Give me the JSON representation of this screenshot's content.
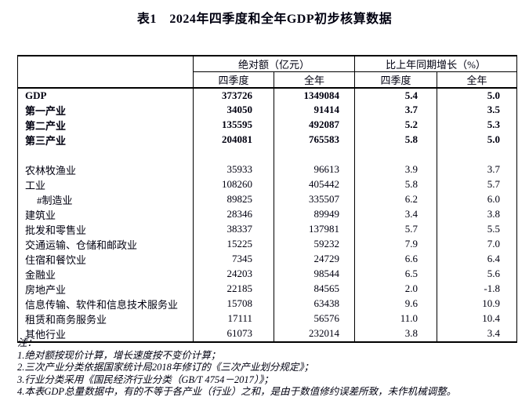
{
  "title": "表1　2024年四季度和全年GDP初步核算数据",
  "table": {
    "group_headers": [
      "绝对额（亿元）",
      "比上年同期增长（%）"
    ],
    "sub_headers": [
      "四季度",
      "全年",
      "四季度",
      "全年"
    ],
    "rows": [
      {
        "label": "GDP",
        "bold": true,
        "abs_q4": "373726",
        "abs_year": "1349084",
        "growth_q4": "5.4",
        "growth_year": "5.0"
      },
      {
        "label": "第一产业",
        "bold": true,
        "abs_q4": "34050",
        "abs_year": "91414",
        "growth_q4": "3.7",
        "growth_year": "3.5"
      },
      {
        "label": "第二产业",
        "bold": true,
        "abs_q4": "135595",
        "abs_year": "492087",
        "growth_q4": "5.2",
        "growth_year": "5.3"
      },
      {
        "label": "第三产业",
        "bold": true,
        "abs_q4": "204081",
        "abs_year": "765583",
        "growth_q4": "5.8",
        "growth_year": "5.0"
      },
      {
        "blank": true
      },
      {
        "label": "农林牧渔业",
        "abs_q4": "35933",
        "abs_year": "96613",
        "growth_q4": "3.9",
        "growth_year": "3.7"
      },
      {
        "label": "工业",
        "abs_q4": "108260",
        "abs_year": "405442",
        "growth_q4": "5.8",
        "growth_year": "5.7"
      },
      {
        "label": "#制造业",
        "indent": true,
        "abs_q4": "89825",
        "abs_year": "335507",
        "growth_q4": "6.2",
        "growth_year": "6.0"
      },
      {
        "label": "建筑业",
        "abs_q4": "28346",
        "abs_year": "89949",
        "growth_q4": "3.4",
        "growth_year": "3.8"
      },
      {
        "label": "批发和零售业",
        "abs_q4": "38337",
        "abs_year": "137981",
        "growth_q4": "5.7",
        "growth_year": "5.5"
      },
      {
        "label": "交通运输、仓储和邮政业",
        "abs_q4": "15225",
        "abs_year": "59232",
        "growth_q4": "7.9",
        "growth_year": "7.0"
      },
      {
        "label": "住宿和餐饮业",
        "abs_q4": "7345",
        "abs_year": "24729",
        "growth_q4": "6.6",
        "growth_year": "6.4"
      },
      {
        "label": "金融业",
        "abs_q4": "24203",
        "abs_year": "98544",
        "growth_q4": "6.5",
        "growth_year": "5.6"
      },
      {
        "label": "房地产业",
        "abs_q4": "22185",
        "abs_year": "84565",
        "growth_q4": "2.0",
        "growth_year": "-1.8"
      },
      {
        "label": "信息传输、软件和信息技术服务业",
        "abs_q4": "15708",
        "abs_year": "63438",
        "growth_q4": "9.6",
        "growth_year": "10.9"
      },
      {
        "label": "租赁和商务服务业",
        "abs_q4": "17111",
        "abs_year": "56576",
        "growth_q4": "11.0",
        "growth_year": "10.4"
      },
      {
        "label": "其他行业",
        "abs_q4": "61073",
        "abs_year": "232014",
        "growth_q4": "3.8",
        "growth_year": "3.4"
      }
    ]
  },
  "notes": {
    "lines": [
      "注：",
      "1.绝对额按现价计算，增长速度按不变价计算；",
      "2.三次产业分类依据国家统计局2018年修订的《三次产业划分规定》；",
      "3.行业分类采用《国民经济行业分类（GB/T 4754－2017）》；",
      "4.本表GDP总量数据中，有的不等于各产业（行业）之和，是由于数值修约误差所致，未作机械调整。"
    ]
  },
  "colors": {
    "text": "#000010",
    "border": "#000000",
    "background": "#ffffff"
  }
}
